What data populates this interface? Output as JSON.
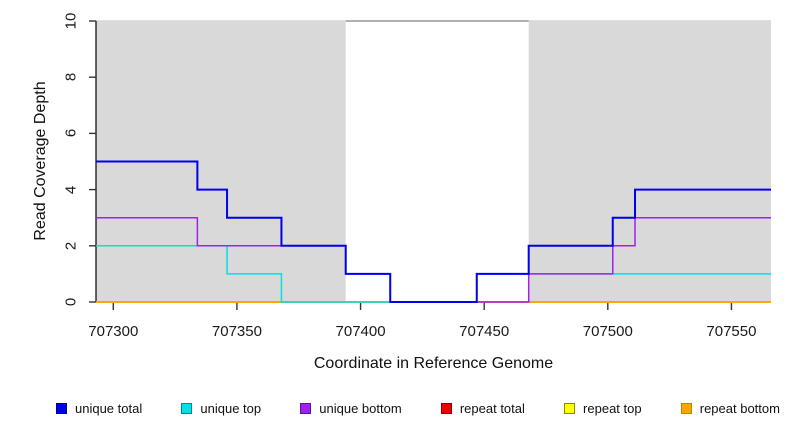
{
  "figure": {
    "background": "#ffffff",
    "shade_color": "#d9d9d9",
    "axis_color": "#000000",
    "tick_color": "#333333",
    "gap_border_color": "#808080"
  },
  "chart_data": {
    "type": "line",
    "subtype": "step",
    "title": "",
    "xlabel": "Coordinate in Reference Genome",
    "ylabel": "Read Coverage Depth",
    "xlim": [
      707293,
      707566
    ],
    "ylim": [
      0,
      10
    ],
    "x_ticks": [
      707300,
      707350,
      707400,
      707450,
      707500,
      707550
    ],
    "y_ticks": [
      0,
      2,
      4,
      6,
      8,
      10
    ],
    "grid": false,
    "legend_position": "bottom",
    "shaded_regions": [
      [
        707293,
        707394
      ],
      [
        707468,
        707566
      ]
    ],
    "series": [
      {
        "name": "unique total",
        "color": "#0000EE",
        "edge": "#00008B",
        "z": 6,
        "width": 2,
        "steps": [
          [
            707293,
            5
          ],
          [
            707334,
            4
          ],
          [
            707346,
            3
          ],
          [
            707368,
            2
          ],
          [
            707394,
            1
          ],
          [
            707412,
            0
          ],
          [
            707447,
            1
          ],
          [
            707468,
            2
          ],
          [
            707502,
            3
          ],
          [
            707511,
            4
          ],
          [
            707566,
            4
          ]
        ]
      },
      {
        "name": "unique top",
        "color": "#00E0E8",
        "edge": "#008B8B",
        "z": 4,
        "width": 1.5,
        "steps": [
          [
            707293,
            2
          ],
          [
            707346,
            1
          ],
          [
            707368,
            0
          ],
          [
            707447,
            1
          ],
          [
            707566,
            1
          ]
        ]
      },
      {
        "name": "unique bottom",
        "color": "#A020F0",
        "edge": "#551A8B",
        "z": 5,
        "width": 1.5,
        "steps": [
          [
            707293,
            3
          ],
          [
            707334,
            2
          ],
          [
            707394,
            1
          ],
          [
            707412,
            0
          ],
          [
            707468,
            1
          ],
          [
            707502,
            2
          ],
          [
            707511,
            3
          ],
          [
            707566,
            3
          ]
        ]
      },
      {
        "name": "repeat total",
        "color": "#EE0000",
        "edge": "#8B0000",
        "z": 1,
        "width": 1.5,
        "steps": [
          [
            707293,
            0
          ],
          [
            707566,
            0
          ]
        ]
      },
      {
        "name": "repeat top",
        "color": "#FFFF00",
        "edge": "#8B8B00",
        "z": 2,
        "width": 1.5,
        "steps": [
          [
            707293,
            0
          ],
          [
            707566,
            0
          ]
        ]
      },
      {
        "name": "repeat bottom",
        "color": "#FFA500",
        "edge": "#B8860B",
        "z": 3,
        "width": 1.5,
        "steps": [
          [
            707293,
            0
          ],
          [
            707566,
            0
          ]
        ]
      }
    ]
  }
}
